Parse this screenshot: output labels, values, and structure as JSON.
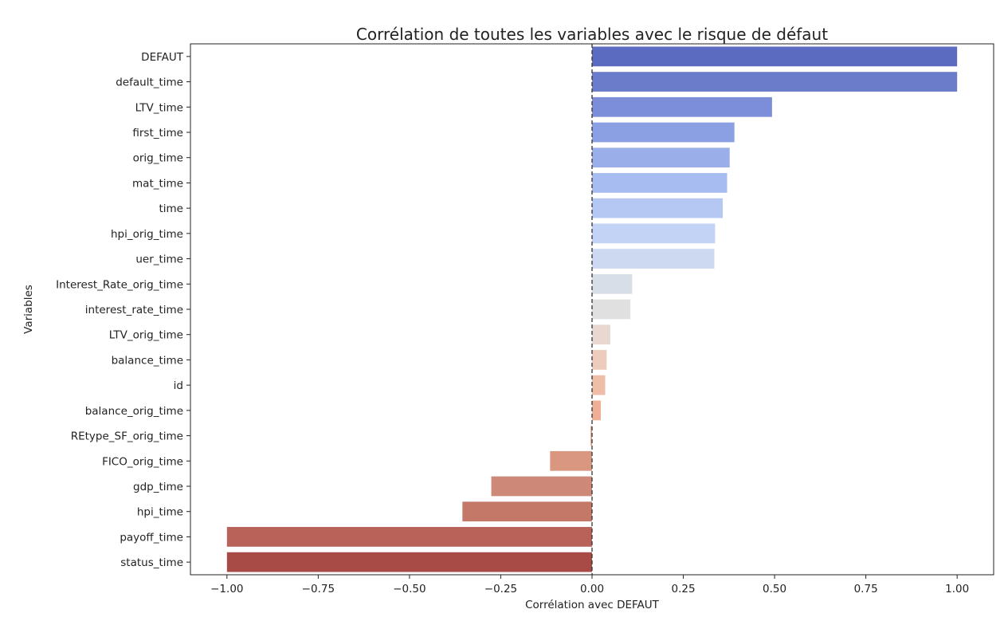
{
  "chart_data": {
    "type": "bar",
    "orientation": "horizontal",
    "title": "Corrélation de toutes les variables avec le risque de défaut",
    "xlabel": "Corrélation avec DEFAUT",
    "ylabel": "Variables",
    "xlim": [
      -1.1,
      1.1
    ],
    "xticks": [
      -1.0,
      -0.75,
      -0.5,
      -0.25,
      0.0,
      0.25,
      0.5,
      0.75,
      1.0
    ],
    "xtick_labels": [
      "−1.00",
      "−0.75",
      "−0.50",
      "−0.25",
      "0.00",
      "0.25",
      "0.50",
      "0.75",
      "1.00"
    ],
    "grid": false,
    "reference_line": {
      "x": 0.0,
      "style": "dashed",
      "color": "#333333"
    },
    "categories": [
      "DEFAUT",
      "default_time",
      "LTV_time",
      "first_time",
      "orig_time",
      "mat_time",
      "time",
      "hpi_orig_time",
      "uer_time",
      "Interest_Rate_orig_time",
      "interest_rate_time",
      "LTV_orig_time",
      "balance_time",
      "id",
      "balance_orig_time",
      "REtype_SF_orig_time",
      "FICO_orig_time",
      "gdp_time",
      "hpi_time",
      "payoff_time",
      "status_time"
    ],
    "values": [
      1.0,
      1.0,
      0.493,
      0.39,
      0.377,
      0.37,
      0.358,
      0.337,
      0.335,
      0.11,
      0.105,
      0.05,
      0.04,
      0.036,
      0.024,
      -0.004,
      -0.115,
      -0.276,
      -0.355,
      -1.0,
      -1.0
    ],
    "colors": [
      "#5b6cc0",
      "#6b7cca",
      "#7c8ed7",
      "#8ba0e2",
      "#9aafea",
      "#a7bcf0",
      "#b5c8f3",
      "#c3d3f5",
      "#cdd9f0",
      "#d8dee8",
      "#e0e0e0",
      "#e8d8cf",
      "#edcbbd",
      "#eebea9",
      "#eeaf95",
      "#e8a088",
      "#d99780",
      "#cd8878",
      "#c47868",
      "#b8625a",
      "#a84b47"
    ]
  }
}
